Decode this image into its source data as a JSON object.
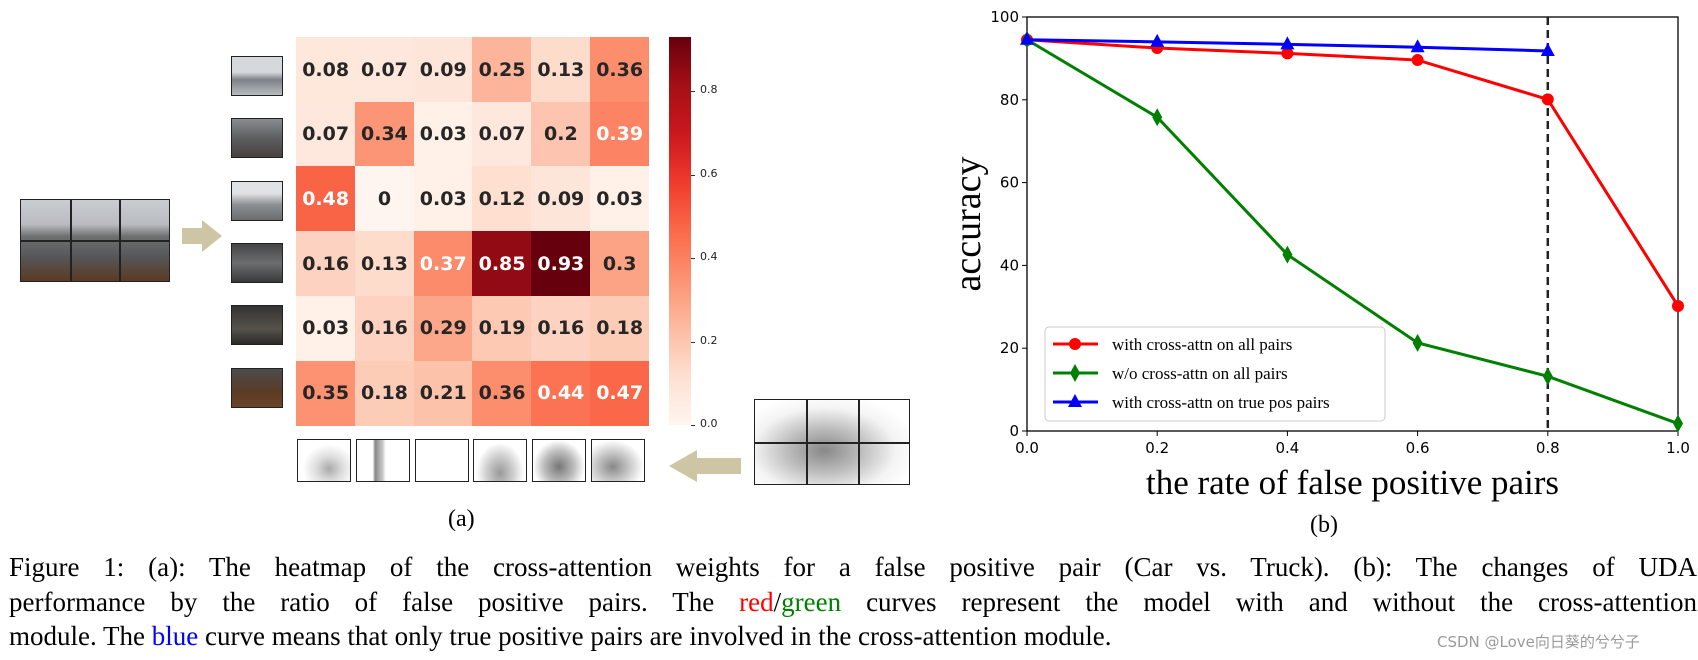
{
  "panel_a": {
    "label": "(a)",
    "heatmap": {
      "values": [
        [
          0.08,
          0.07,
          0.09,
          0.25,
          0.13,
          0.36
        ],
        [
          0.07,
          0.34,
          0.03,
          0.07,
          0.2,
          0.39
        ],
        [
          0.48,
          0,
          0.03,
          0.12,
          0.09,
          0.03
        ],
        [
          0.16,
          0.13,
          0.37,
          0.85,
          0.93,
          0.3
        ],
        [
          0.03,
          0.16,
          0.29,
          0.19,
          0.16,
          0.18
        ],
        [
          0.35,
          0.18,
          0.21,
          0.36,
          0.44,
          0.47
        ]
      ],
      "labels": [
        [
          "0.08",
          "0.07",
          "0.09",
          "0.25",
          "0.13",
          "0.36"
        ],
        [
          "0.07",
          "0.34",
          "0.03",
          "0.07",
          "0.2",
          "0.39"
        ],
        [
          "0.48",
          "0",
          "0.03",
          "0.12",
          "0.09",
          "0.03"
        ],
        [
          "0.16",
          "0.13",
          "0.37",
          "0.85",
          "0.93",
          "0.3"
        ],
        [
          "0.03",
          "0.16",
          "0.29",
          "0.19",
          "0.16",
          "0.18"
        ],
        [
          "0.35",
          "0.18",
          "0.21",
          "0.36",
          "0.44",
          "0.47"
        ]
      ],
      "colormap": "Reds",
      "colorbar_range": [
        0,
        0.93
      ],
      "colorbar_ticks": [
        "0.0",
        "0.2",
        "0.4",
        "0.6",
        "0.8"
      ]
    },
    "arrow_color": "#cdc5a4"
  },
  "chart_data": {
    "type": "line",
    "x": [
      0.0,
      0.2,
      0.4,
      0.6,
      0.8,
      1.0
    ],
    "series": [
      {
        "name": "with cross-attn on all pairs",
        "color": "#ff0000",
        "marker": "circle",
        "values": [
          94.5,
          92.5,
          91.2,
          89.6,
          80.1,
          30.2
        ]
      },
      {
        "name": "w/o cross-attn on all pairs",
        "color": "#008000",
        "marker": "diamond",
        "values": [
          94.5,
          75.8,
          42.6,
          21.3,
          13.2,
          1.8
        ]
      },
      {
        "name": "with cross-attn on true pos pairs",
        "color": "#0000ff",
        "marker": "triangle",
        "values": [
          94.5,
          94.0,
          93.4,
          92.7,
          91.8,
          null
        ]
      }
    ],
    "xlabel": "the rate of false positive pairs",
    "ylabel": "accuracy",
    "xlim": [
      0,
      1.0
    ],
    "ylim": [
      0,
      100
    ],
    "xticks": [
      "0.0",
      "0.2",
      "0.4",
      "0.6",
      "0.8",
      "1.0"
    ],
    "yticks": [
      "0",
      "20",
      "40",
      "60",
      "80",
      "100"
    ],
    "vline_x": 0.8,
    "legend_position": "lower-left",
    "grid": false,
    "panel_label": "(b)"
  },
  "caption": {
    "line1": "Figure 1: (a): The heatmap of the cross-attention weights for a false positive pair (Car vs. Truck). (b): The changes of UDA",
    "line2_before": "performance by the ratio of false positive pairs. The ",
    "red_word": "red",
    "slash": "/",
    "green_word": "green",
    "line2_after": " curves represent the model with and without the cross-attention",
    "line3_before": "module. The ",
    "blue_word": "blue",
    "line3_after": " curve means that only true positive pairs are involved in the cross-attention module."
  },
  "watermark": "CSDN @Love向日葵的兮兮子"
}
